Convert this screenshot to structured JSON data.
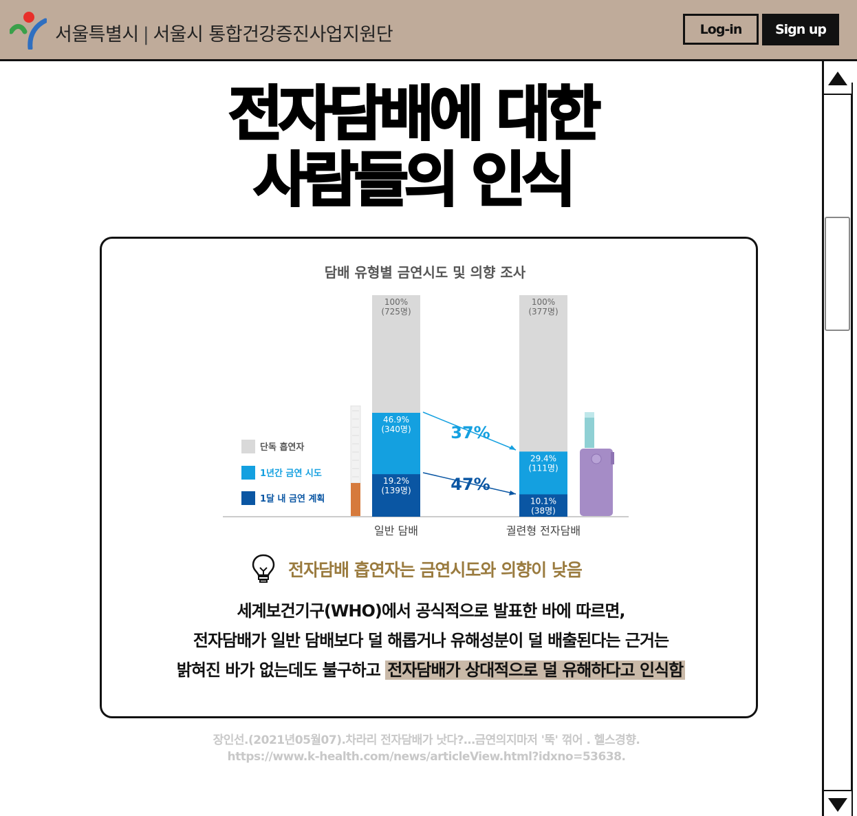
{
  "header": {
    "org_name": "서울특별시",
    "separator": "|",
    "dept_name": "서울시 통합건강증진사업지원단",
    "login_label": "Log-in",
    "signup_label": "Sign up",
    "bg_color": "#bfab9a"
  },
  "title": {
    "line1": "전자담배에 대한",
    "line2": "사람들의 인식"
  },
  "chart_data": {
    "type": "bar",
    "title": "담배 유형별 금연시도 및 의향 조사",
    "categories": [
      "일반 담배",
      "궐련형 전자담배"
    ],
    "totals": [
      {
        "percent_label": "100%",
        "count_label": "(725명)",
        "value": 100
      },
      {
        "percent_label": "100%",
        "count_label": "(377명)",
        "value": 100
      }
    ],
    "series": [
      {
        "name": "단독 흡연자",
        "color": "#d9d9d9",
        "values": [
          100,
          100
        ]
      },
      {
        "name": "1년간 금연 시도",
        "color": "#14a0e0",
        "values": [
          46.9,
          29.4
        ],
        "labels": [
          "46.9%",
          "29.4%"
        ],
        "counts": [
          "(340명)",
          "(111명)"
        ]
      },
      {
        "name": "1달 내 금연 계획",
        "color": "#0a56a3",
        "values": [
          19.2,
          10.1
        ],
        "labels": [
          "19.2%",
          "10.1%"
        ],
        "counts": [
          "(139명)",
          "(38명)"
        ]
      }
    ],
    "ylim": [
      0,
      100
    ],
    "annotations": [
      {
        "text": "37%",
        "color": "#14a0e0"
      },
      {
        "text": "47%",
        "color": "#0a56a3"
      }
    ],
    "legend_position": "left",
    "grid": false
  },
  "tip": {
    "icon": "lightbulb-icon",
    "text": "전자담배 흡연자는 금연시도와 의향이 낮음"
  },
  "body": {
    "line1": "세계보건기구(WHO)에서 공식적으로 발표한 바에 따르면,",
    "line2": "전자담배가 일반 담배보다 덜 해롭거나 유해성분이 덜 배출된다는 근거는",
    "line3_plain": "밝혀진 바가 없는데도 불구하고 ",
    "line3_highlight": "전자담배가 상대적으로 덜 유해하다고 인식함"
  },
  "citation": {
    "line1": "장인선.(2021년05월07).차라리 전자담배가 낫다?…금연의지마저 '뚝' 꺾어 . 헬스경향.",
    "line2": "https://www.k-health.com/news/articleView.html?idxno=53638."
  }
}
